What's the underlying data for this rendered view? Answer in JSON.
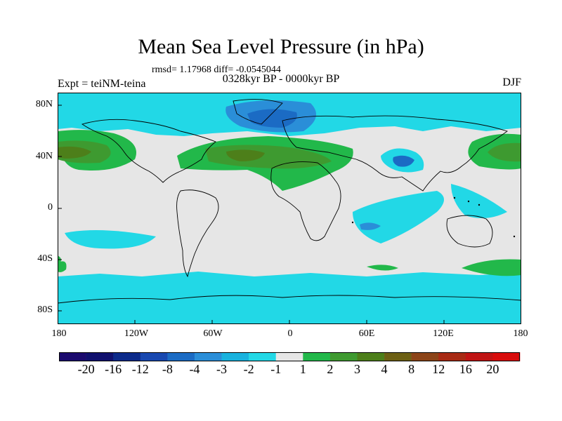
{
  "title": "Mean Sea Level Pressure (in hPa)",
  "stats": "rmsd= 1.17968 diff= -0.0545044",
  "period": "0328kyr BP - 0000kyr BP",
  "expt": "Expt = teiNM-teina",
  "season": "DJF",
  "lat_labels": [
    "80N",
    "40N",
    "0",
    "40S",
    "80S"
  ],
  "lon_labels": [
    "180",
    "120W",
    "60W",
    "0",
    "60E",
    "120E",
    "180"
  ],
  "colorbar": {
    "labels": [
      "-20",
      "-16",
      "-12",
      "-8",
      "-4",
      "-3",
      "-2",
      "-1",
      "1",
      "2",
      "3",
      "4",
      "8",
      "12",
      "16",
      "20"
    ],
    "colors": [
      "#1b0a6e",
      "#10106e",
      "#0c2a8a",
      "#1848b0",
      "#1b6bc4",
      "#2a8ed8",
      "#18b2de",
      "#22d8e6",
      "#e6e6e6",
      "#22b84a",
      "#3e9a30",
      "#4d7f1a",
      "#6d6014",
      "#8c4418",
      "#a82a14",
      "#c01414",
      "#d80c0c"
    ]
  }
}
